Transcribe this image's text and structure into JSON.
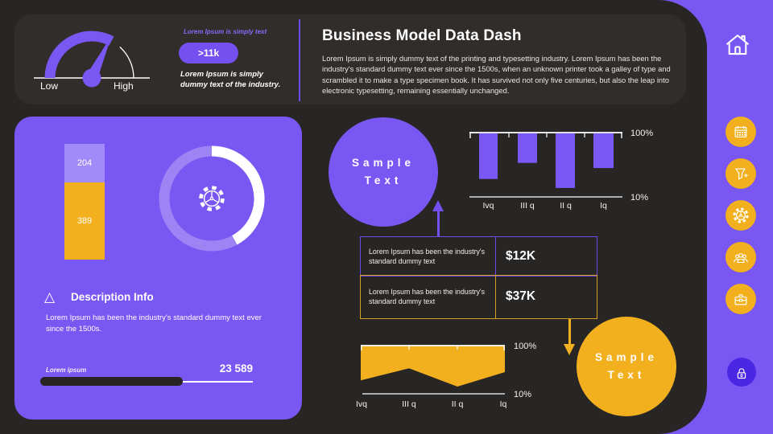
{
  "slide": {
    "title": "Business Model Data Dash",
    "intro": "Lorem Ipsum is simply dummy text of the printing and typesetting industry. Lorem Ipsum has been the industry's standard dummy text ever since the 1500s, when an unknown printer took a galley of type and scrambled it to make a type specimen book. It has survived not only five centuries, but also the leap into electronic typesetting, remaining essentially  unchanged."
  },
  "gauge": {
    "low_label": "Low",
    "high_label": "High",
    "caption_small": "Lorem Ipsum is simply text",
    "badge": ">11k",
    "caption": "Lorem Ipsum is simply dummy text of the industry."
  },
  "left_panel": {
    "stacked_bar": {
      "top_value": "204",
      "bottom_value": "389"
    },
    "description": {
      "heading": "Description Info",
      "body": "Lorem Ipsum has been the industry's standard dummy text ever since the 1500s.",
      "progress_label": "Lorem ipsum",
      "progress_value": "23 589",
      "progress_fill_pct": 67
    }
  },
  "bubbles": {
    "purple": "Sample Text",
    "yellow": "Sample Text"
  },
  "table": {
    "rows": [
      {
        "label": "Lorem Ipsum has been the industry's standard dummy text",
        "value": "$12K",
        "accent": "#6A4AE8"
      },
      {
        "label": "Lorem Ipsum has been the industry's standard dummy text",
        "value": "$37K",
        "accent": "#D7A01F"
      }
    ]
  },
  "chart_data": [
    {
      "id": "quarterly-bar-chart",
      "type": "bar",
      "direction": "hanging-from-top",
      "categories": [
        "Ivq",
        "III q",
        "II q",
        "Iq"
      ],
      "depth_pct": [
        71,
        46,
        85,
        54
      ],
      "approx_values_pct": [
        36,
        59,
        23,
        51
      ],
      "axis_top_label": "100%",
      "axis_bottom_label": "10%",
      "color": "#7A58F5",
      "ylim": [
        "10%",
        "100%"
      ]
    },
    {
      "id": "quarterly-area-chart",
      "type": "area",
      "direction": "hanging-from-top",
      "categories": [
        "Ivq",
        "III q",
        "II q",
        "Iq"
      ],
      "depth_pct": [
        72,
        47,
        85,
        55
      ],
      "approx_values_pct": [
        35,
        58,
        24,
        50
      ],
      "axis_top_label": "100%",
      "axis_bottom_label": "10%",
      "color": "#F2B01E",
      "ylim": [
        "10%",
        "100%"
      ]
    },
    {
      "id": "donut-progress",
      "type": "donut",
      "value_pct": 42,
      "arc_color": "#FFFFFF",
      "ring_color": "rgba(255,255,255,0.27)",
      "center_icon": "gear-icon"
    },
    {
      "id": "stacked-column",
      "type": "bar",
      "stacked": true,
      "values": [
        204,
        389
      ],
      "colors": [
        "#A18BF8",
        "#F2B01E"
      ]
    },
    {
      "id": "speed-gauge",
      "type": "gauge",
      "labels": [
        "Low",
        "High"
      ],
      "arc_color": "#7857F2",
      "needle": "upper-right"
    }
  ],
  "sidebar": {
    "items": [
      "home",
      "calendar",
      "filter-plus",
      "gear",
      "people",
      "toolbox",
      "lock"
    ]
  },
  "colors": {
    "purple": "#7957F2",
    "purple_deep": "#7450F0",
    "yellow": "#F2B01E",
    "light_purple": "#A18BF8",
    "bg_dark": "#282525",
    "panel_dark": "#302D2B",
    "lock_circle": "#4A26E5",
    "border_purple": "#6A4AE8",
    "border_yellow": "#D7A01F"
  }
}
